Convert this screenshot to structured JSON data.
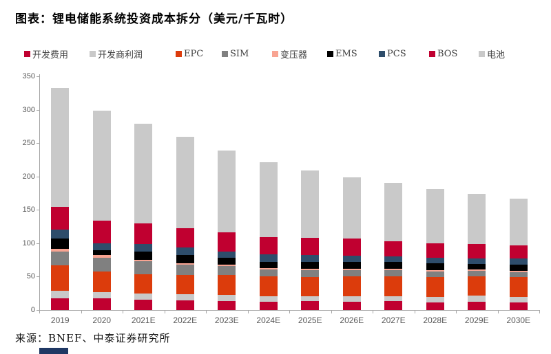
{
  "title": "图表：锂电储能系统投资成本拆分（美元/千瓦时）",
  "source": "来源：BNEF、中泰证券研究所",
  "chart_data": {
    "type": "bar",
    "stacked": true,
    "title": "锂电储能系统投资成本拆分",
    "unit": "美元/千瓦时",
    "categories": [
      "2019",
      "2020",
      "2021E",
      "2022E",
      "2023E",
      "2024E",
      "2025E",
      "2026E",
      "2027E",
      "2028E",
      "2029E",
      "2030E"
    ],
    "series": [
      {
        "name": "开发费用",
        "color": "#C00030",
        "values": [
          18,
          17,
          15,
          14,
          13,
          12,
          13,
          12,
          13,
          11,
          12,
          11
        ]
      },
      {
        "name": "开发商利润",
        "color": "#C9C9C9",
        "values": [
          11,
          10,
          10,
          10,
          10,
          9,
          8,
          9,
          8,
          9,
          10,
          9
        ]
      },
      {
        "name": "EPC",
        "color": "#DC3C0C",
        "values": [
          38,
          31,
          29,
          29,
          29,
          29,
          28,
          29,
          29,
          29,
          28,
          29
        ]
      },
      {
        "name": "SIM",
        "color": "#808080",
        "values": [
          21,
          20,
          19,
          15,
          14,
          11,
          11,
          10,
          10,
          9,
          9,
          8
        ]
      },
      {
        "name": "变压器",
        "color": "#F8A492",
        "values": [
          4,
          4,
          2,
          2,
          2,
          2,
          2,
          2,
          2,
          2,
          2,
          2
        ]
      },
      {
        "name": "EMS",
        "color": "#000000",
        "values": [
          15,
          8,
          12,
          12,
          10,
          9,
          10,
          10,
          10,
          10,
          8,
          9
        ]
      },
      {
        "name": "PCS",
        "color": "#2E4D6B",
        "values": [
          13,
          10,
          12,
          12,
          10,
          11,
          10,
          9,
          8,
          8,
          8,
          9
        ]
      },
      {
        "name": "BOS",
        "color": "#C00030",
        "values": [
          34,
          34,
          31,
          28,
          28,
          26,
          26,
          26,
          23,
          22,
          22,
          20
        ]
      },
      {
        "name": "电池",
        "color": "#C9C9C9",
        "values": [
          179,
          165,
          149,
          137,
          123,
          112,
          101,
          92,
          87,
          81,
          75,
          70
        ]
      }
    ],
    "totals": [
      333,
      299,
      279,
      259,
      239,
      221,
      209,
      199,
      190,
      181,
      174,
      167
    ],
    "ylim": [
      0,
      350
    ],
    "ytick_step": 50,
    "y_tick_labels": [
      "0",
      "50",
      "100",
      "150",
      "200",
      "250",
      "300",
      "350"
    ],
    "xlabel": "",
    "ylabel": "",
    "legend_position": "top",
    "grid": false
  }
}
